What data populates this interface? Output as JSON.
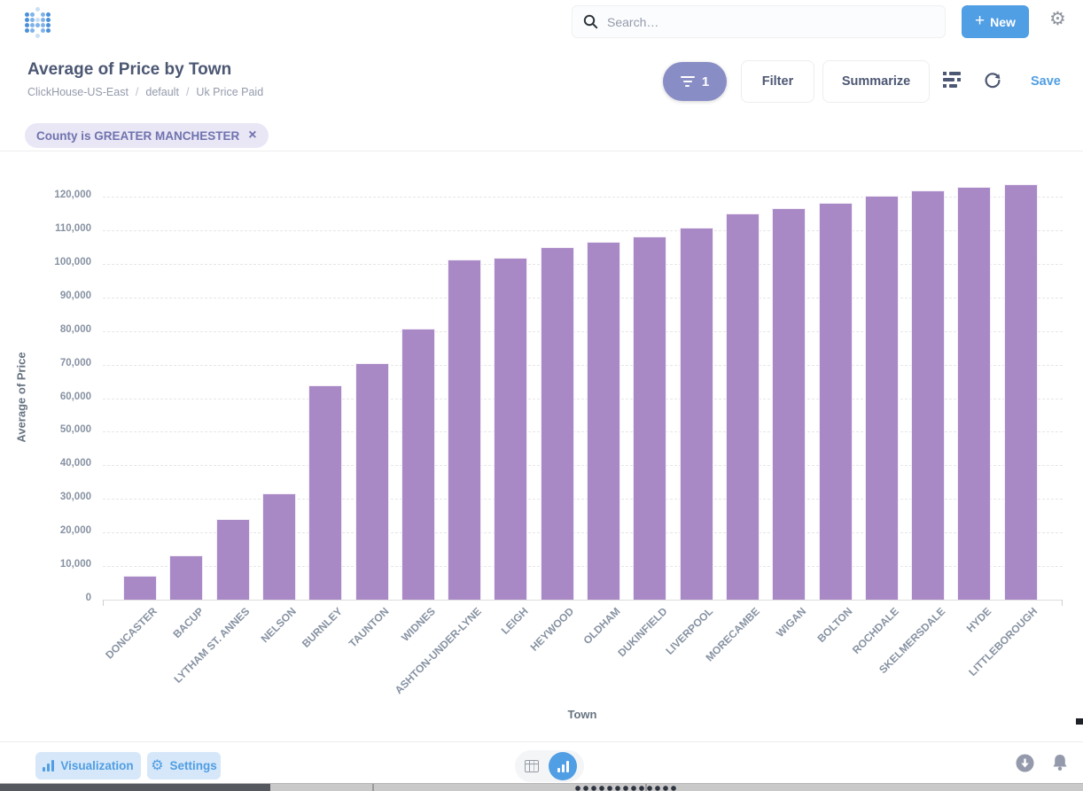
{
  "header": {
    "search_placeholder": "Search…",
    "new_label": "New",
    "plus": "+",
    "gear_glyph": "⚙"
  },
  "title_bar": {
    "title": "Average of Price by Town",
    "breadcrumb": [
      "ClickHouse-US-East",
      "default",
      "Uk Price Paid"
    ],
    "separator": "/",
    "filter_count": "1",
    "filter_label": "Filter",
    "summarize_label": "Summarize",
    "save_label": "Save"
  },
  "filter_chip": {
    "text": "County is GREATER MANCHESTER",
    "close": "×"
  },
  "chart_data": {
    "type": "bar",
    "title": "Average of Price by Town",
    "xlabel": "Town",
    "ylabel": "Average of Price",
    "ylim": [
      0,
      130000
    ],
    "yticks": [
      0,
      10000,
      20000,
      30000,
      40000,
      50000,
      60000,
      70000,
      80000,
      90000,
      100000,
      110000,
      120000
    ],
    "grid": true,
    "legend": false,
    "bar_color": "#A989C5",
    "categories": [
      "DONCASTER",
      "BACUP",
      "LYTHAM ST. ANNES",
      "NELSON",
      "BURNLEY",
      "TAUNTON",
      "WIDNES",
      "ASHTON-UNDER-LYNE",
      "LEIGH",
      "HEYWOOD",
      "OLDHAM",
      "DUKINFIELD",
      "LIVERPOOL",
      "MORECAMBE",
      "WIGAN",
      "BOLTON",
      "ROCHDALE",
      "SKELMERSDALE",
      "HYDE",
      "LITTLEBOROUGH"
    ],
    "values": [
      7100,
      13200,
      24000,
      31700,
      63900,
      70400,
      80700,
      101300,
      101700,
      104900,
      106500,
      108200,
      110800,
      114900,
      116600,
      118200,
      120200,
      121900,
      122800,
      123700
    ]
  },
  "footer": {
    "visualization_label": "Visualization",
    "settings_label": "Settings",
    "gear_glyph": "⚙"
  },
  "colors": {
    "brand_blue": "#509EE3",
    "bar_purple": "#A989C5",
    "filter_pill_purple": "#898DC5",
    "chip_bg": "#E9E6F6",
    "chip_text": "#6F73AE",
    "title_text": "#4C5773",
    "muted_text": "#949AAB"
  },
  "logo_palette": {
    "dark": "#4A90D9",
    "mid": "#7FB2E8",
    "light": "#C9DFF6"
  }
}
